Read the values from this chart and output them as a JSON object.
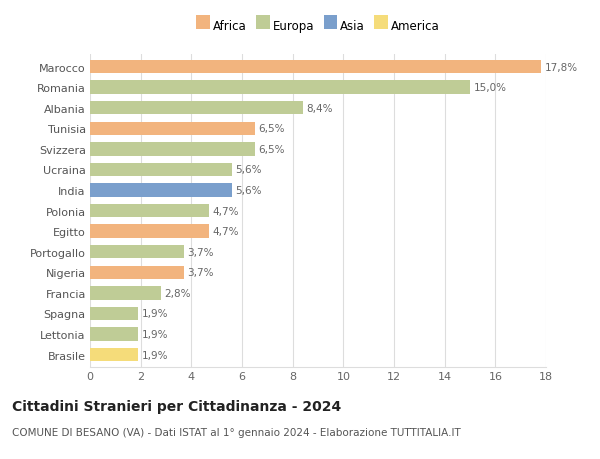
{
  "countries": [
    "Marocco",
    "Romania",
    "Albania",
    "Tunisia",
    "Svizzera",
    "Ucraina",
    "India",
    "Polonia",
    "Egitto",
    "Portogallo",
    "Nigeria",
    "Francia",
    "Spagna",
    "Lettonia",
    "Brasile"
  ],
  "values": [
    17.8,
    15.0,
    8.4,
    6.5,
    6.5,
    5.6,
    5.6,
    4.7,
    4.7,
    3.7,
    3.7,
    2.8,
    1.9,
    1.9,
    1.9
  ],
  "labels": [
    "17,8%",
    "15,0%",
    "8,4%",
    "6,5%",
    "6,5%",
    "5,6%",
    "5,6%",
    "4,7%",
    "4,7%",
    "3,7%",
    "3,7%",
    "2,8%",
    "1,9%",
    "1,9%",
    "1,9%"
  ],
  "colors": [
    "#F2B47E",
    "#BFCC96",
    "#BFCC96",
    "#F2B47E",
    "#BFCC96",
    "#BFCC96",
    "#7A9FCC",
    "#BFCC96",
    "#F2B47E",
    "#BFCC96",
    "#F2B47E",
    "#BFCC96",
    "#BFCC96",
    "#BFCC96",
    "#F5DC7A"
  ],
  "legend_labels": [
    "Africa",
    "Europa",
    "Asia",
    "America"
  ],
  "legend_colors": [
    "#F2B47E",
    "#BFCC96",
    "#7A9FCC",
    "#F5DC7A"
  ],
  "title": "Cittadini Stranieri per Cittadinanza - 2024",
  "subtitle": "COMUNE DI BESANO (VA) - Dati ISTAT al 1° gennaio 2024 - Elaborazione TUTTITALIA.IT",
  "xlim": [
    0,
    18
  ],
  "xticks": [
    0,
    2,
    4,
    6,
    8,
    10,
    12,
    14,
    16,
    18
  ],
  "background_color": "#ffffff",
  "plot_bg_color": "#ffffff",
  "grid_color": "#dddddd",
  "bar_height": 0.65,
  "label_fontsize": 7.5,
  "axis_fontsize": 8,
  "title_fontsize": 10,
  "subtitle_fontsize": 7.5
}
